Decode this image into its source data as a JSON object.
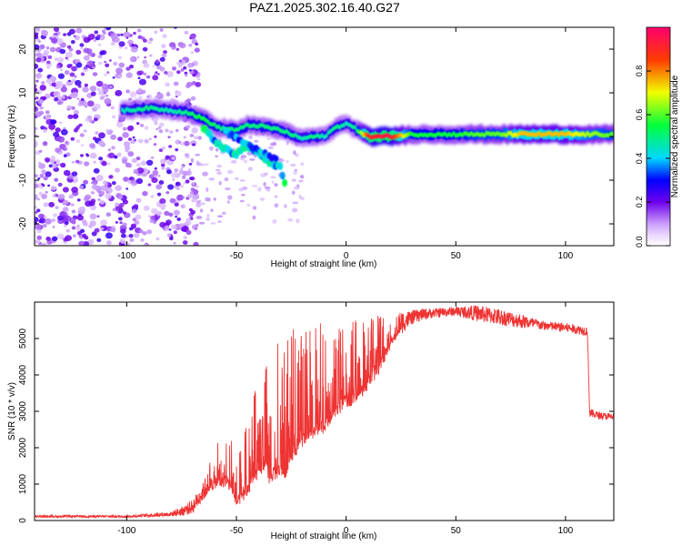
{
  "title": "PAZ1.2025.302.16.40.G27",
  "chart_data": [
    {
      "type": "heatmap",
      "name": "spectrogram",
      "xlabel": "Height of straight line (km)",
      "ylabel": "Frequency (Hz)",
      "xlim": [
        -142,
        122
      ],
      "ylim": [
        -25,
        25
      ],
      "xticks": [
        -100,
        -50,
        0,
        50,
        100
      ],
      "yticks": [
        -20,
        -10,
        0,
        10,
        20
      ],
      "colorbar": {
        "label": "Normalized spectral amplitude",
        "range": [
          0,
          1
        ],
        "ticks": [
          "0.0",
          "0.2",
          "0.4",
          "0.6",
          "0.8"
        ],
        "tick_values": [
          0.0,
          0.2,
          0.4,
          0.6,
          0.8
        ]
      },
      "ridge": {
        "x": [
          -100,
          -90,
          -80,
          -72,
          -65,
          -58,
          -50,
          -45,
          -40,
          -35,
          -30,
          -25,
          -20,
          -15,
          -10,
          -5,
          0,
          5,
          10,
          20,
          30,
          40,
          50,
          60,
          70,
          80,
          90,
          100,
          110,
          120
        ],
        "freq": [
          6,
          6.5,
          6,
          5.5,
          4,
          2,
          1.5,
          2.5,
          2.5,
          2,
          1.5,
          0.5,
          -0.5,
          0,
          0,
          2,
          3,
          1.5,
          0,
          0,
          0.5,
          0.5,
          0.5,
          0.5,
          0.5,
          0.5,
          0.5,
          0.5,
          0.5,
          0.5
        ],
        "amplitude": [
          0.45,
          0.5,
          0.45,
          0.5,
          0.55,
          0.5,
          0.5,
          0.5,
          0.5,
          0.5,
          0.5,
          0.5,
          0.45,
          0.5,
          0.45,
          0.5,
          0.45,
          0.5,
          0.9,
          0.95,
          0.55,
          0.55,
          0.55,
          0.6,
          0.6,
          0.75,
          0.75,
          0.75,
          0.65,
          0.6
        ]
      },
      "branches": {
        "x": [
          -65,
          -60,
          -55,
          -50,
          -45,
          -40,
          -35,
          -30,
          -28
        ],
        "freq": [
          2,
          -1,
          -3,
          -4,
          -2,
          -4,
          -6,
          -7,
          -11
        ]
      }
    },
    {
      "type": "line",
      "name": "snr",
      "xlabel": "Height of straight line (km)",
      "ylabel": "SNR (10 * v/v)",
      "xlim": [
        -142,
        122
      ],
      "ylim": [
        0,
        6000
      ],
      "xticks": [
        -100,
        -50,
        0,
        50,
        100
      ],
      "yticks": [
        0,
        1000,
        2000,
        3000,
        4000,
        5000
      ],
      "color": "#ee3333",
      "envelope": {
        "x": [
          -142,
          -120,
          -100,
          -80,
          -75,
          -70,
          -65,
          -60,
          -55,
          -52,
          -50,
          -45,
          -40,
          -37,
          -35,
          -30,
          -28,
          -25,
          -20,
          -15,
          -10,
          -5,
          0,
          5,
          10,
          15,
          20,
          25,
          30,
          35,
          40,
          50,
          60,
          70,
          80,
          90,
          100,
          105,
          110,
          111,
          115,
          122
        ],
        "base": [
          100,
          100,
          100,
          150,
          200,
          300,
          700,
          1000,
          1100,
          900,
          500,
          800,
          1400,
          1500,
          1200,
          1400,
          1300,
          1800,
          2200,
          2400,
          2600,
          3000,
          3300,
          3400,
          3800,
          4200,
          4800,
          5300,
          5500,
          5600,
          5650,
          5700,
          5600,
          5500,
          5400,
          5300,
          5250,
          5200,
          5150,
          2900,
          2850,
          2800
        ],
        "spike_max": [
          150,
          150,
          150,
          250,
          400,
          600,
          1100,
          2000,
          2600,
          2400,
          1500,
          2800,
          4100,
          5200,
          5300,
          5400,
          5400,
          5400,
          5200,
          5500,
          5400,
          5600,
          5300,
          5600,
          5500,
          5700,
          5700,
          5800,
          5800,
          5850,
          5850,
          5900,
          5950,
          5850,
          5700,
          5500,
          5450,
          5400,
          5350,
          3100,
          3000,
          2950
        ]
      }
    }
  ]
}
